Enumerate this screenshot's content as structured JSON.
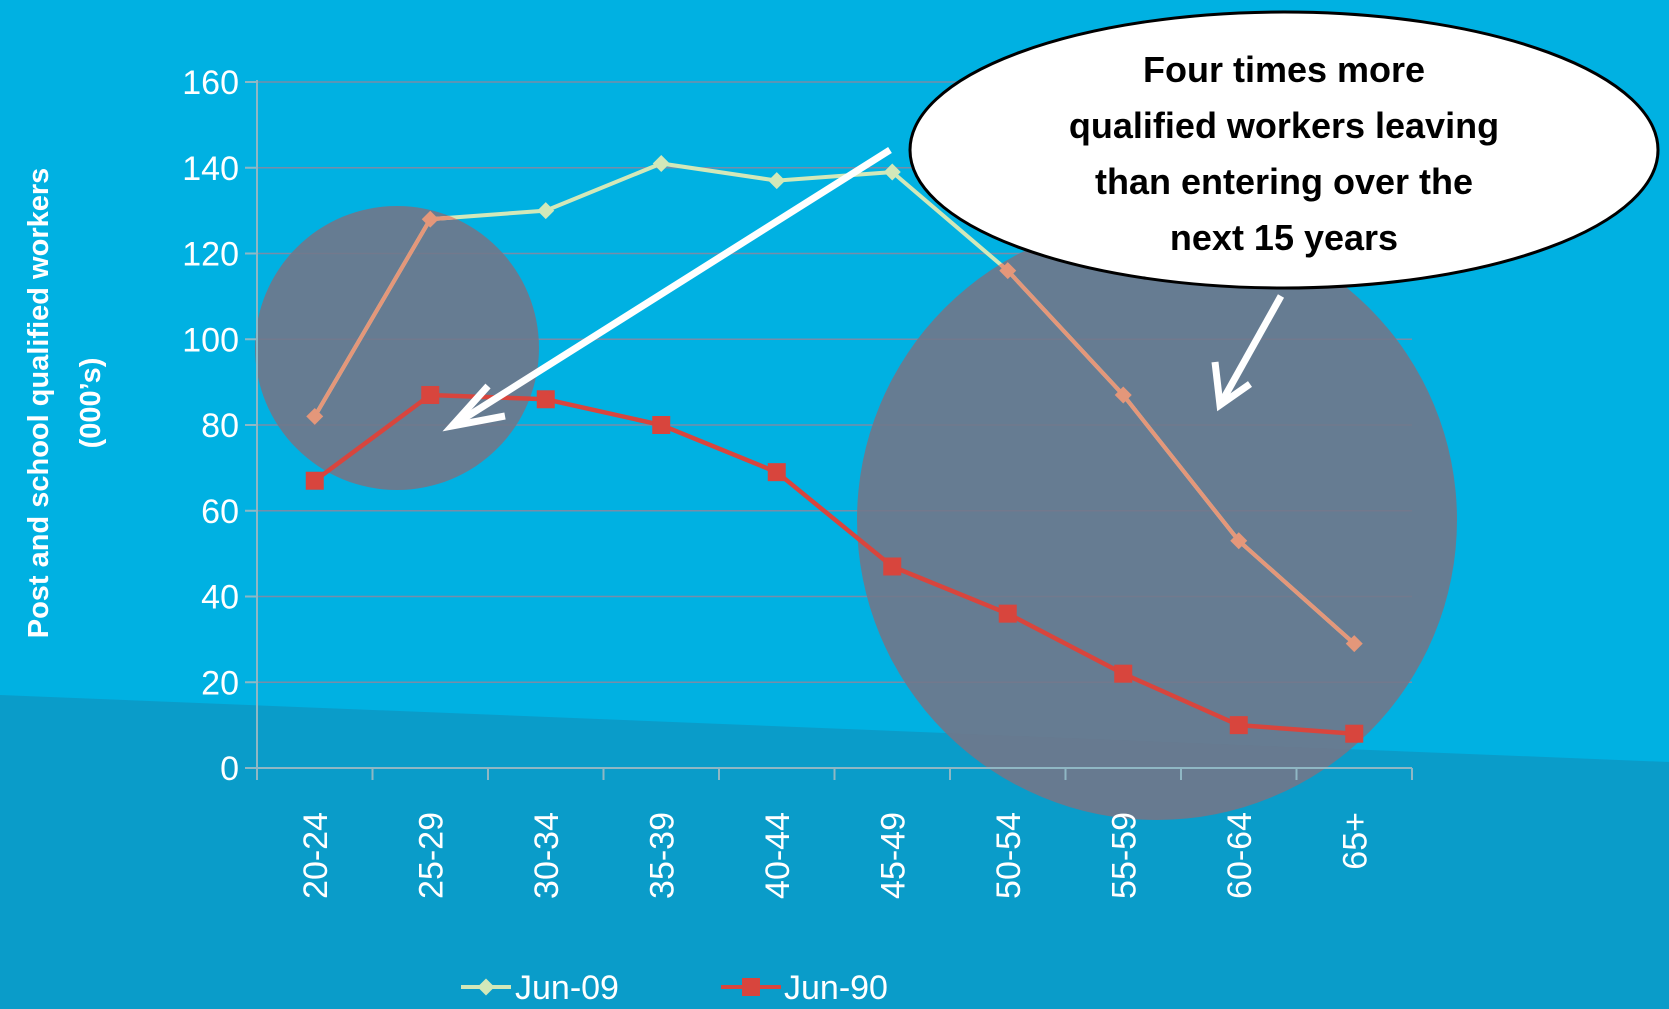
{
  "colors": {
    "background": "#00b1e2",
    "band": "#0a9cc9",
    "jun09": "#d2e8b9",
    "jun09_in_circle": "#e4977a",
    "jun90": "#d8453d",
    "bubble": "#71778a",
    "callout_fill": "#ffffff",
    "arrow": "#ffffff"
  },
  "callout": {
    "lines": [
      "Four times more",
      "qualified workers leaving",
      "than entering over the",
      "next 15 years"
    ]
  },
  "chart_data": {
    "type": "line",
    "categories": [
      "20-24",
      "25-29",
      "30-34",
      "35-39",
      "40-44",
      "45-49",
      "50-54",
      "55-59",
      "60-64",
      "65+"
    ],
    "series": [
      {
        "name": "Jun-09",
        "values": [
          82,
          128,
          130,
          141,
          137,
          139,
          116,
          87,
          53,
          29
        ],
        "marker": "diamond"
      },
      {
        "name": "Jun-90",
        "values": [
          67,
          87,
          86,
          80,
          69,
          47,
          36,
          22,
          10,
          8
        ],
        "marker": "square"
      }
    ],
    "title": "",
    "xlabel": "",
    "ylabel": [
      "Post and school qualified workers",
      "(000’s)"
    ],
    "ylim": [
      0,
      160
    ],
    "yticks": [
      0,
      20,
      40,
      60,
      80,
      100,
      120,
      140,
      160
    ],
    "grid": true,
    "legend": "bottom",
    "highlights": [
      {
        "categories": [
          "20-24",
          "30-34"
        ],
        "y_range": [
          66,
          131
        ],
        "meaning": "entering"
      },
      {
        "categories": [
          "45-49",
          "65+"
        ],
        "y_range": [
          -8,
          130
        ],
        "meaning": "leaving"
      }
    ]
  }
}
